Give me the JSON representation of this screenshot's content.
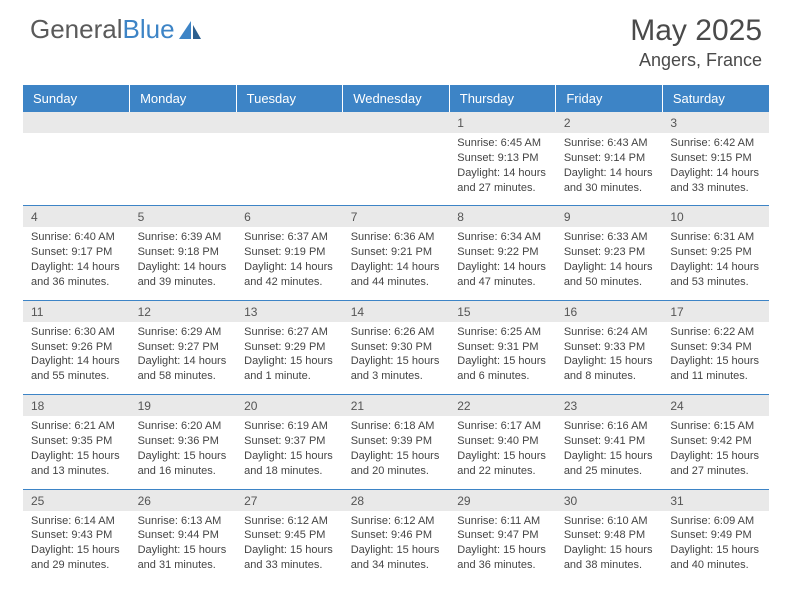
{
  "brand": {
    "part1": "General",
    "part2": "Blue"
  },
  "title": "May 2025",
  "location": "Angers, France",
  "colors": {
    "header_bg": "#3d84c6",
    "header_text": "#ffffff",
    "num_row_bg": "#e9e9e9",
    "row_divider": "#3d84c6",
    "text": "#444444",
    "page_bg": "#ffffff"
  },
  "typography": {
    "title_fontsize": 30,
    "location_fontsize": 18,
    "dayname_fontsize": 13,
    "cell_fontsize": 11
  },
  "day_names": [
    "Sunday",
    "Monday",
    "Tuesday",
    "Wednesday",
    "Thursday",
    "Friday",
    "Saturday"
  ],
  "weeks": [
    [
      null,
      null,
      null,
      null,
      {
        "n": "1",
        "sunrise": "6:45 AM",
        "sunset": "9:13 PM",
        "daylight": "14 hours and 27 minutes."
      },
      {
        "n": "2",
        "sunrise": "6:43 AM",
        "sunset": "9:14 PM",
        "daylight": "14 hours and 30 minutes."
      },
      {
        "n": "3",
        "sunrise": "6:42 AM",
        "sunset": "9:15 PM",
        "daylight": "14 hours and 33 minutes."
      }
    ],
    [
      {
        "n": "4",
        "sunrise": "6:40 AM",
        "sunset": "9:17 PM",
        "daylight": "14 hours and 36 minutes."
      },
      {
        "n": "5",
        "sunrise": "6:39 AM",
        "sunset": "9:18 PM",
        "daylight": "14 hours and 39 minutes."
      },
      {
        "n": "6",
        "sunrise": "6:37 AM",
        "sunset": "9:19 PM",
        "daylight": "14 hours and 42 minutes."
      },
      {
        "n": "7",
        "sunrise": "6:36 AM",
        "sunset": "9:21 PM",
        "daylight": "14 hours and 44 minutes."
      },
      {
        "n": "8",
        "sunrise": "6:34 AM",
        "sunset": "9:22 PM",
        "daylight": "14 hours and 47 minutes."
      },
      {
        "n": "9",
        "sunrise": "6:33 AM",
        "sunset": "9:23 PM",
        "daylight": "14 hours and 50 minutes."
      },
      {
        "n": "10",
        "sunrise": "6:31 AM",
        "sunset": "9:25 PM",
        "daylight": "14 hours and 53 minutes."
      }
    ],
    [
      {
        "n": "11",
        "sunrise": "6:30 AM",
        "sunset": "9:26 PM",
        "daylight": "14 hours and 55 minutes."
      },
      {
        "n": "12",
        "sunrise": "6:29 AM",
        "sunset": "9:27 PM",
        "daylight": "14 hours and 58 minutes."
      },
      {
        "n": "13",
        "sunrise": "6:27 AM",
        "sunset": "9:29 PM",
        "daylight": "15 hours and 1 minute."
      },
      {
        "n": "14",
        "sunrise": "6:26 AM",
        "sunset": "9:30 PM",
        "daylight": "15 hours and 3 minutes."
      },
      {
        "n": "15",
        "sunrise": "6:25 AM",
        "sunset": "9:31 PM",
        "daylight": "15 hours and 6 minutes."
      },
      {
        "n": "16",
        "sunrise": "6:24 AM",
        "sunset": "9:33 PM",
        "daylight": "15 hours and 8 minutes."
      },
      {
        "n": "17",
        "sunrise": "6:22 AM",
        "sunset": "9:34 PM",
        "daylight": "15 hours and 11 minutes."
      }
    ],
    [
      {
        "n": "18",
        "sunrise": "6:21 AM",
        "sunset": "9:35 PM",
        "daylight": "15 hours and 13 minutes."
      },
      {
        "n": "19",
        "sunrise": "6:20 AM",
        "sunset": "9:36 PM",
        "daylight": "15 hours and 16 minutes."
      },
      {
        "n": "20",
        "sunrise": "6:19 AM",
        "sunset": "9:37 PM",
        "daylight": "15 hours and 18 minutes."
      },
      {
        "n": "21",
        "sunrise": "6:18 AM",
        "sunset": "9:39 PM",
        "daylight": "15 hours and 20 minutes."
      },
      {
        "n": "22",
        "sunrise": "6:17 AM",
        "sunset": "9:40 PM",
        "daylight": "15 hours and 22 minutes."
      },
      {
        "n": "23",
        "sunrise": "6:16 AM",
        "sunset": "9:41 PM",
        "daylight": "15 hours and 25 minutes."
      },
      {
        "n": "24",
        "sunrise": "6:15 AM",
        "sunset": "9:42 PM",
        "daylight": "15 hours and 27 minutes."
      }
    ],
    [
      {
        "n": "25",
        "sunrise": "6:14 AM",
        "sunset": "9:43 PM",
        "daylight": "15 hours and 29 minutes."
      },
      {
        "n": "26",
        "sunrise": "6:13 AM",
        "sunset": "9:44 PM",
        "daylight": "15 hours and 31 minutes."
      },
      {
        "n": "27",
        "sunrise": "6:12 AM",
        "sunset": "9:45 PM",
        "daylight": "15 hours and 33 minutes."
      },
      {
        "n": "28",
        "sunrise": "6:12 AM",
        "sunset": "9:46 PM",
        "daylight": "15 hours and 34 minutes."
      },
      {
        "n": "29",
        "sunrise": "6:11 AM",
        "sunset": "9:47 PM",
        "daylight": "15 hours and 36 minutes."
      },
      {
        "n": "30",
        "sunrise": "6:10 AM",
        "sunset": "9:48 PM",
        "daylight": "15 hours and 38 minutes."
      },
      {
        "n": "31",
        "sunrise": "6:09 AM",
        "sunset": "9:49 PM",
        "daylight": "15 hours and 40 minutes."
      }
    ]
  ],
  "labels": {
    "sunrise_prefix": "Sunrise: ",
    "sunset_prefix": "Sunset: ",
    "daylight_prefix": "Daylight: "
  }
}
